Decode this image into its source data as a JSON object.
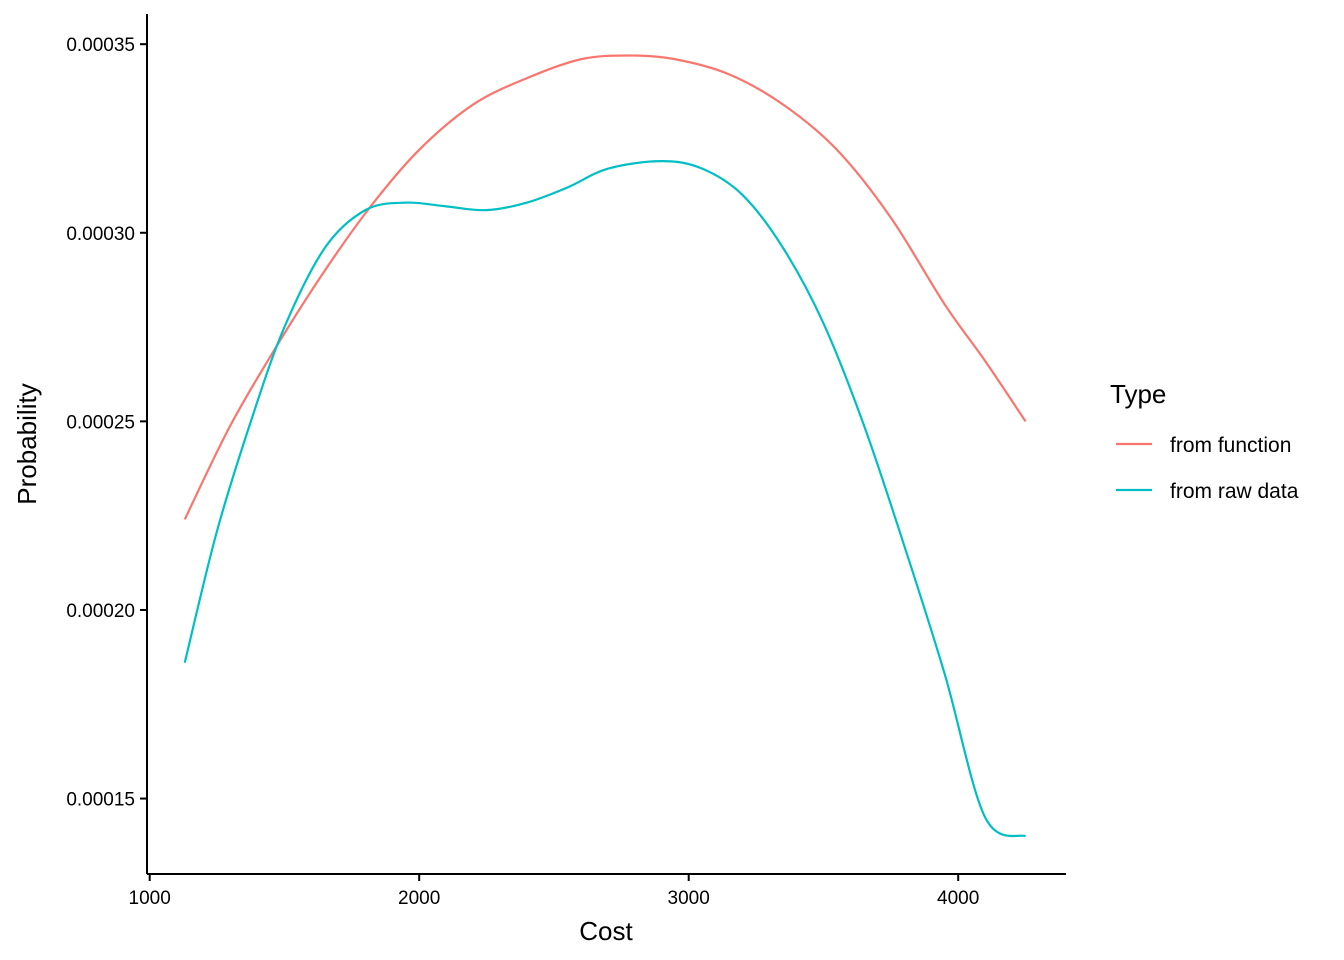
{
  "chart_data": {
    "type": "line",
    "xlabel": "Cost",
    "ylabel": "Probability",
    "xlim": [
      990,
      4400
    ],
    "ylim": [
      0.00013,
      0.000358
    ],
    "x_ticks": [
      1000,
      2000,
      3000,
      4000
    ],
    "x_tick_labels": [
      "1000",
      "2000",
      "3000",
      "4000"
    ],
    "y_ticks": [
      0.00015,
      0.0002,
      0.00025,
      0.0003,
      0.00035
    ],
    "y_tick_labels": [
      "0.00015",
      "0.00020",
      "0.00025",
      "0.00030",
      "0.00035"
    ],
    "grid": false,
    "legend": {
      "title": "Type",
      "position": "right"
    },
    "series": [
      {
        "name": "from function",
        "color": "#F8766D",
        "x": [
          1130,
          1300,
          1480,
          1650,
          1820,
          2000,
          2200,
          2400,
          2600,
          2780,
          2950,
          3150,
          3350,
          3550,
          3750,
          3950,
          4100,
          4250
        ],
        "y": [
          0.000224,
          0.000249,
          0.000271,
          0.00029,
          0.000307,
          0.000322,
          0.000334,
          0.000341,
          0.000346,
          0.000347,
          0.000346,
          0.000342,
          0.000334,
          0.000322,
          0.000304,
          0.000281,
          0.000266,
          0.00025
        ]
      },
      {
        "name": "from raw data",
        "color": "#00BFC4",
        "x": [
          1130,
          1250,
          1380,
          1500,
          1650,
          1800,
          1950,
          2100,
          2250,
          2400,
          2550,
          2700,
          2900,
          3050,
          3200,
          3350,
          3500,
          3650,
          3800,
          3950,
          4100,
          4250
        ],
        "y": [
          0.000186,
          0.000221,
          0.000251,
          0.000275,
          0.000296,
          0.000306,
          0.000308,
          0.000307,
          0.000306,
          0.000308,
          0.000312,
          0.000317,
          0.000319,
          0.000317,
          0.00031,
          0.000296,
          0.000276,
          0.000249,
          0.000217,
          0.000183,
          0.000145,
          0.00014
        ]
      }
    ]
  }
}
